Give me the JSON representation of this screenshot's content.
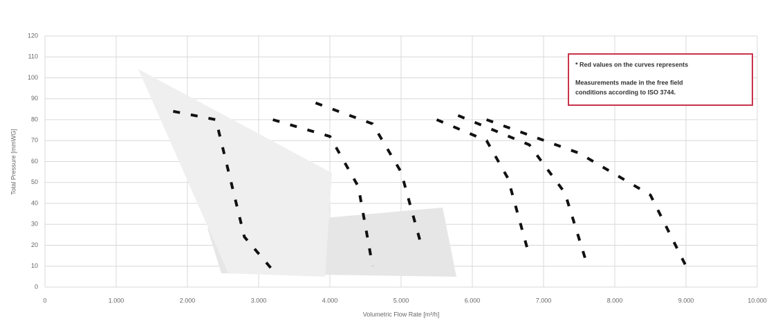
{
  "chart_data": {
    "type": "line",
    "y_label": "Total Pressure [mmWG]",
    "x_label": "Volumetric Flow Rate [m³/h]",
    "note": [
      "* Red values on the curves represents",
      "Measurements made in the free field",
      "conditions according to ISO 3744."
    ],
    "xlim": [
      0,
      10000
    ],
    "xticks": [
      0,
      {
        "value": 1000,
        "label": "1.000"
      },
      {
        "value": 2000,
        "label": "2.000"
      },
      {
        "value": 3000,
        "label": "3.000"
      },
      {
        "value": 4000,
        "label": "4.000"
      },
      {
        "value": 5000,
        "label": "5.000"
      },
      {
        "value": 6000,
        "label": "6.000"
      },
      {
        "value": 7000,
        "label": "7.000"
      },
      {
        "value": 8000,
        "label": "8.000"
      },
      {
        "value": 9000,
        "label": "9.000"
      },
      {
        "value": 10000,
        "label": "10.000"
      }
    ],
    "ylim": [
      0,
      120
    ],
    "yticks": [
      0,
      10,
      20,
      30,
      40,
      50,
      60,
      70,
      80,
      90,
      100,
      110,
      120
    ],
    "grid": true,
    "series": [
      {
        "color": "#111111",
        "x": [
          1800,
          2400,
          2800,
          3200
        ],
        "values": [
          84,
          80,
          24,
          8
        ]
      },
      {
        "color": "#111111",
        "x": [
          3200,
          4000,
          4400,
          4600
        ],
        "values": [
          80,
          72,
          48,
          10
        ]
      },
      {
        "color": "#111111",
        "x": [
          3800,
          4600,
          5000,
          5300
        ],
        "values": [
          88,
          78,
          55,
          18
        ]
      },
      {
        "color": "#111111",
        "x": [
          5500,
          6200,
          6500,
          6800
        ],
        "values": [
          80,
          70,
          52,
          15
        ]
      },
      {
        "color": "#111111",
        "x": [
          5800,
          6800,
          7300,
          7600
        ],
        "values": [
          82,
          68,
          45,
          12
        ]
      },
      {
        "color": "#111111",
        "x": [
          6200,
          7500,
          8500,
          9000
        ],
        "values": [
          80,
          64,
          44,
          10
        ]
      }
    ]
  }
}
